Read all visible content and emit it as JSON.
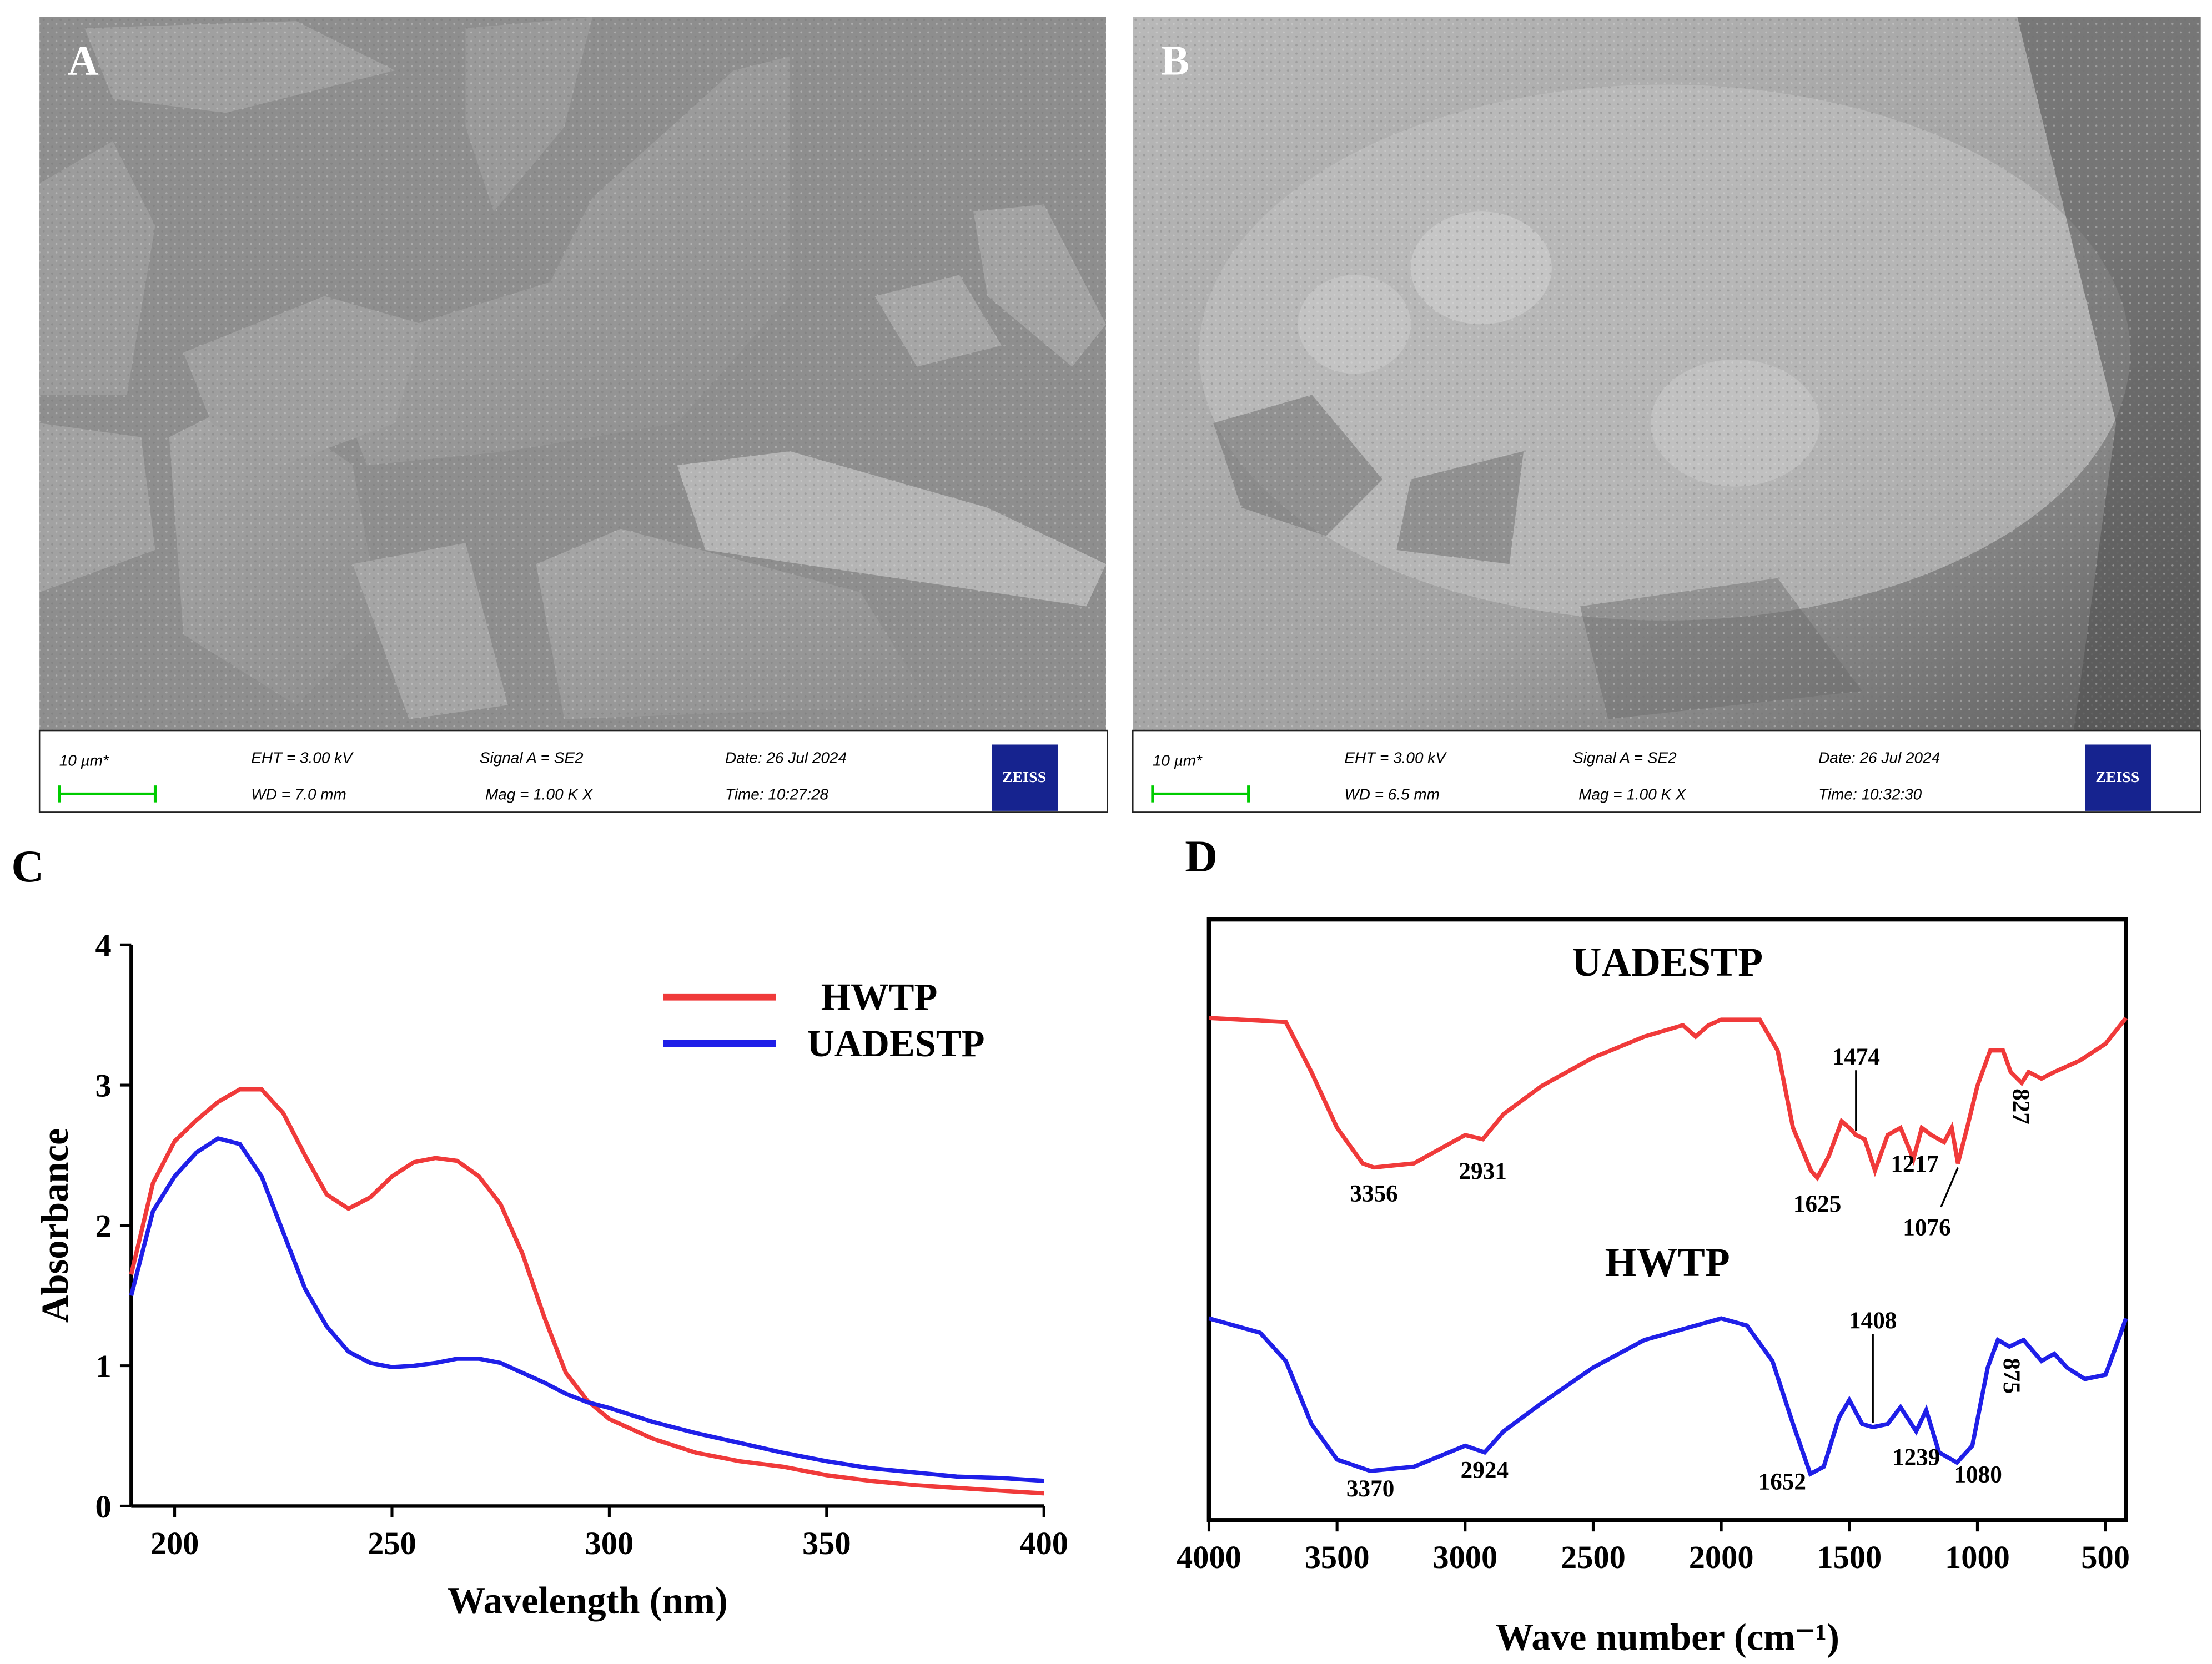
{
  "panels": [
    {
      "label": "A",
      "scale_bar": "10 µm*",
      "eht": "EHT = 3.00 kV",
      "wd": "WD = 7.0 mm",
      "signal": "Signal A = SE2",
      "mag": "Mag = 1.00 K X",
      "date": "Date: 26 Jul 2024",
      "time": "Time: 10:27:28",
      "logo": "ZEISS"
    },
    {
      "label": "B",
      "scale_bar": "10 µm*",
      "eht": "EHT = 3.00 kV",
      "wd": "WD = 6.5 mm",
      "signal": "Signal A = SE2",
      "mag": "Mag = 1.00 K X",
      "date": "Date: 26 Jul 2024",
      "time": "Time: 10:32:30",
      "logo": "ZEISS"
    }
  ],
  "chart_data": [
    {
      "type": "line",
      "label": "C",
      "x_label": "Wavelength (nm)",
      "y_label": "Absorbance",
      "x": [
        190,
        195,
        200,
        205,
        210,
        215,
        220,
        225,
        230,
        235,
        240,
        245,
        250,
        255,
        260,
        265,
        270,
        275,
        280,
        285,
        290,
        295,
        300,
        310,
        320,
        330,
        340,
        350,
        360,
        370,
        380,
        390,
        400
      ],
      "series": [
        {
          "name": "HWTP",
          "color": "#f03a3a",
          "values": [
            1.65,
            2.3,
            2.6,
            2.75,
            2.88,
            2.97,
            2.97,
            2.8,
            2.5,
            2.22,
            2.12,
            2.2,
            2.35,
            2.45,
            2.48,
            2.46,
            2.35,
            2.15,
            1.8,
            1.35,
            0.95,
            0.75,
            0.62,
            0.48,
            0.38,
            0.32,
            0.28,
            0.22,
            0.18,
            0.15,
            0.13,
            0.11,
            0.09
          ]
        },
        {
          "name": "UADESTP",
          "color": "#1f1fe8",
          "values": [
            1.5,
            2.1,
            2.35,
            2.52,
            2.62,
            2.58,
            2.35,
            1.95,
            1.55,
            1.28,
            1.1,
            1.02,
            0.99,
            1.0,
            1.02,
            1.05,
            1.05,
            1.02,
            0.95,
            0.88,
            0.8,
            0.74,
            0.7,
            0.6,
            0.52,
            0.45,
            0.38,
            0.32,
            0.27,
            0.24,
            0.21,
            0.2,
            0.18
          ]
        }
      ],
      "xlim": [
        190,
        400
      ],
      "ylim": [
        0,
        4
      ],
      "xticks": [
        200,
        250,
        300,
        350,
        400
      ],
      "yticks": [
        0,
        1,
        2,
        3,
        4
      ],
      "legend": "upper right"
    },
    {
      "type": "line",
      "label": "D",
      "x_label": "Wave number (cm⁻¹)",
      "series": [
        {
          "name": "UADESTP",
          "color": "#f03a3a",
          "x": [
            4000,
            3700,
            3600,
            3500,
            3400,
            3356,
            3200,
            3000,
            2931,
            2850,
            2700,
            2500,
            2300,
            2150,
            2100,
            2050,
            2000,
            1850,
            1780,
            1720,
            1650,
            1625,
            1580,
            1530,
            1500,
            1474,
            1440,
            1400,
            1350,
            1300,
            1250,
            1217,
            1180,
            1130,
            1100,
            1076,
            1040,
            1000,
            950,
            900,
            870,
            827,
            800,
            750,
            700,
            600,
            500,
            420
          ],
          "values": [
            83.6,
            82.9,
            74.6,
            65.3,
            59.4,
            58.7,
            59.4,
            64.1,
            63.4,
            67.6,
            72.3,
            77.0,
            80.5,
            82.4,
            80.5,
            82.4,
            83.3,
            83.3,
            78.2,
            65.3,
            58.2,
            57.0,
            60.6,
            66.4,
            65.3,
            64.1,
            63.4,
            58.2,
            64.1,
            65.3,
            60.1,
            65.3,
            64.1,
            62.9,
            65.3,
            59.4,
            65.3,
            72.3,
            78.2,
            78.2,
            74.6,
            72.8,
            74.6,
            73.5,
            74.6,
            76.5,
            79.3,
            83.6
          ]
        },
        {
          "name": "HWTP",
          "color": "#1f1fe8",
          "x": [
            4000,
            3800,
            3700,
            3600,
            3500,
            3370,
            3200,
            3000,
            2924,
            2850,
            2700,
            2500,
            2300,
            2100,
            2000,
            1900,
            1800,
            1720,
            1652,
            1600,
            1540,
            1500,
            1450,
            1408,
            1350,
            1300,
            1239,
            1200,
            1150,
            1080,
            1020,
            960,
            920,
            875,
            820,
            750,
            700,
            650,
            580,
            500,
            450,
            420
          ],
          "values": [
            33.6,
            31.2,
            26.5,
            16.0,
            10.1,
            8.2,
            8.9,
            12.4,
            11.3,
            14.8,
            19.5,
            25.4,
            30.0,
            32.4,
            33.6,
            32.4,
            26.5,
            16.0,
            7.7,
            8.9,
            17.1,
            20.0,
            16.0,
            15.5,
            16.0,
            18.8,
            14.8,
            18.3,
            11.3,
            9.6,
            12.4,
            25.4,
            30.0,
            28.9,
            30.0,
            26.5,
            27.7,
            25.4,
            23.5,
            24.2,
            30.0,
            33.6
          ]
        }
      ],
      "annotations": [
        {
          "series": 0,
          "x": 3356,
          "label": "3356"
        },
        {
          "series": 0,
          "x": 2931,
          "label": "2931"
        },
        {
          "series": 0,
          "x": 1625,
          "label": "1625"
        },
        {
          "series": 0,
          "x": 1474,
          "label": "1474"
        },
        {
          "series": 0,
          "x": 1217,
          "label": "1217"
        },
        {
          "series": 0,
          "x": 1076,
          "label": "1076"
        },
        {
          "series": 0,
          "x": 827,
          "label": "827"
        },
        {
          "series": 1,
          "x": 3370,
          "label": "3370"
        },
        {
          "series": 1,
          "x": 2924,
          "label": "2924"
        },
        {
          "series": 1,
          "x": 1652,
          "label": "1652"
        },
        {
          "series": 1,
          "x": 1408,
          "label": "1408"
        },
        {
          "series": 1,
          "x": 1239,
          "label": "1239"
        },
        {
          "series": 1,
          "x": 1080,
          "label": "1080"
        },
        {
          "series": 1,
          "x": 875,
          "label": "875"
        }
      ],
      "xlim": [
        4000,
        420
      ],
      "ylim": [
        0,
        100
      ],
      "xticks": [
        4000,
        3500,
        3000,
        2500,
        2000,
        1500,
        1000,
        500
      ],
      "legend": "inline"
    }
  ]
}
